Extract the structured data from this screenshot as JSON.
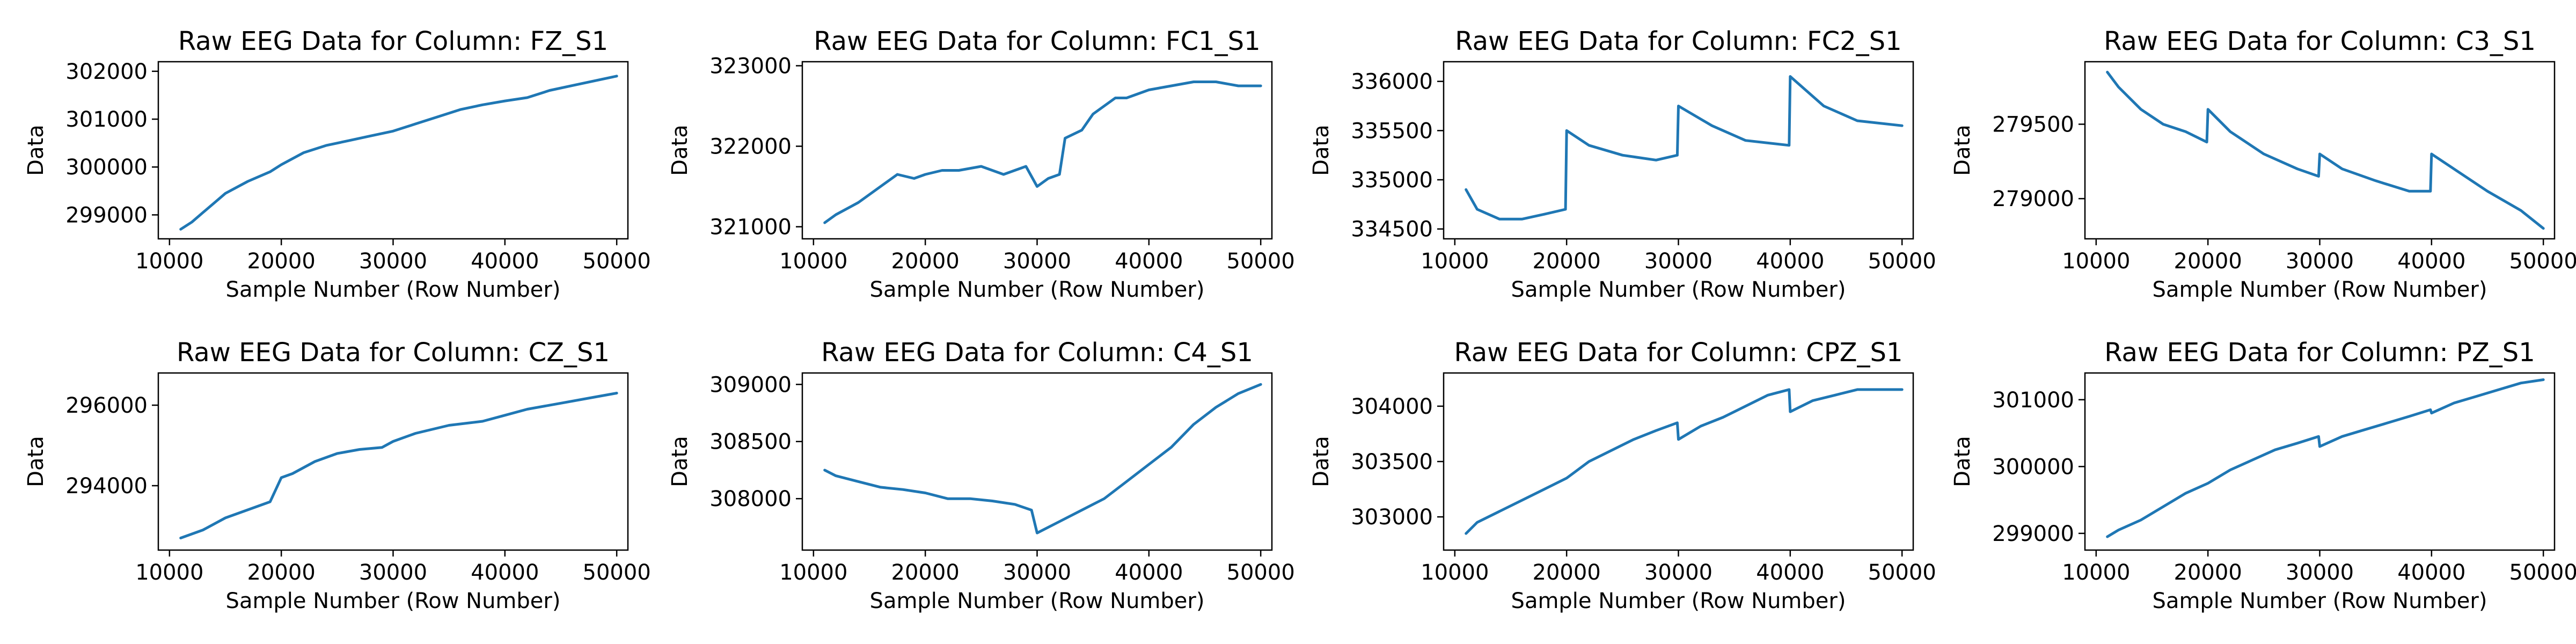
{
  "chart_data": [
    {
      "type": "line",
      "title": "Raw EEG Data for Column: FZ_S1",
      "xlabel": "Sample Number (Row Number)",
      "ylabel": "Data",
      "xlim": [
        9000,
        51000
      ],
      "ylim": [
        298500,
        302200
      ],
      "xticks": [
        10000,
        20000,
        30000,
        40000,
        50000
      ],
      "yticks": [
        299000,
        300000,
        301000,
        302000
      ],
      "series": [
        {
          "color": "#1f77b4",
          "x": [
            11000,
            12000,
            13000,
            14000,
            15000,
            17000,
            19000,
            20000,
            22000,
            24000,
            26000,
            28000,
            30000,
            32000,
            34000,
            36000,
            38000,
            40000,
            42000,
            44000,
            46000,
            48000,
            50000
          ],
          "y": [
            298700,
            298850,
            299050,
            299250,
            299450,
            299700,
            299900,
            300050,
            300300,
            300450,
            300550,
            300650,
            300750,
            300900,
            301050,
            301200,
            301300,
            301380,
            301450,
            301600,
            301700,
            301800,
            301900
          ]
        }
      ]
    },
    {
      "type": "line",
      "title": "Raw EEG Data for Column: FC1_S1",
      "xlabel": "Sample Number (Row Number)",
      "ylabel": "Data",
      "xlim": [
        9000,
        51000
      ],
      "ylim": [
        320850,
        323050
      ],
      "xticks": [
        10000,
        20000,
        30000,
        40000,
        50000
      ],
      "yticks": [
        321000,
        322000,
        323000
      ],
      "series": [
        {
          "color": "#1f77b4",
          "x": [
            11000,
            12000,
            14000,
            15000,
            16000,
            17500,
            19000,
            20000,
            21500,
            23000,
            25000,
            27000,
            28000,
            29000,
            30000,
            31000,
            32000,
            32500,
            34000,
            35000,
            36000,
            37000,
            38000,
            40000,
            42000,
            44000,
            46000,
            48000,
            50000
          ],
          "y": [
            321050,
            321150,
            321300,
            321400,
            321500,
            321650,
            321600,
            321650,
            321700,
            321700,
            321750,
            321650,
            321700,
            321750,
            321500,
            321600,
            321650,
            322100,
            322200,
            322400,
            322500,
            322600,
            322600,
            322700,
            322750,
            322800,
            322800,
            322750,
            322750
          ]
        }
      ]
    },
    {
      "type": "line",
      "title": "Raw EEG Data for Column: FC2_S1",
      "xlabel": "Sample Number (Row Number)",
      "ylabel": "Data",
      "xlim": [
        9000,
        51000
      ],
      "ylim": [
        334400,
        336200
      ],
      "xticks": [
        10000,
        20000,
        30000,
        40000,
        50000
      ],
      "yticks": [
        334500,
        335000,
        335500,
        336000
      ],
      "series": [
        {
          "color": "#1f77b4",
          "x": [
            11000,
            12000,
            14000,
            16000,
            18000,
            19900,
            20000,
            22000,
            25000,
            28000,
            29900,
            30000,
            33000,
            36000,
            39900,
            40000,
            43000,
            46000,
            50000
          ],
          "y": [
            334900,
            334700,
            334600,
            334600,
            334650,
            334700,
            335500,
            335350,
            335250,
            335200,
            335250,
            335750,
            335550,
            335400,
            335350,
            336050,
            335750,
            335600,
            335550
          ]
        }
      ]
    },
    {
      "type": "line",
      "title": "Raw EEG Data for Column: C3_S1",
      "xlabel": "Sample Number (Row Number)",
      "ylabel": "Data",
      "xlim": [
        9000,
        51000
      ],
      "ylim": [
        278730,
        279920
      ],
      "xticks": [
        10000,
        20000,
        30000,
        40000,
        50000
      ],
      "yticks": [
        279000,
        279500
      ],
      "series": [
        {
          "color": "#1f77b4",
          "x": [
            11000,
            12000,
            14000,
            16000,
            18000,
            19900,
            20000,
            22000,
            25000,
            28000,
            29900,
            30000,
            32000,
            35000,
            38000,
            39900,
            40000,
            42000,
            45000,
            48000,
            50000
          ],
          "y": [
            279850,
            279750,
            279600,
            279500,
            279450,
            279380,
            279600,
            279450,
            279300,
            279200,
            279150,
            279300,
            279200,
            279120,
            279050,
            279050,
            279300,
            279200,
            279050,
            278920,
            278800
          ]
        }
      ]
    },
    {
      "type": "line",
      "title": "Raw EEG Data for Column: CZ_S1",
      "xlabel": "Sample Number (Row Number)",
      "ylabel": "Data",
      "xlim": [
        9000,
        51000
      ],
      "ylim": [
        292400,
        296800
      ],
      "xticks": [
        10000,
        20000,
        30000,
        40000,
        50000
      ],
      "yticks": [
        294000,
        296000
      ],
      "series": [
        {
          "color": "#1f77b4",
          "x": [
            11000,
            13000,
            15000,
            17000,
            19000,
            20000,
            21000,
            23000,
            25000,
            27000,
            29000,
            30000,
            32000,
            35000,
            38000,
            40000,
            42000,
            45000,
            48000,
            50000
          ],
          "y": [
            292700,
            292900,
            293200,
            293400,
            293600,
            294200,
            294300,
            294600,
            294800,
            294900,
            294950,
            295100,
            295300,
            295500,
            295600,
            295750,
            295900,
            296050,
            296200,
            296300
          ]
        }
      ]
    },
    {
      "type": "line",
      "title": "Raw EEG Data for Column: C4_S1",
      "xlabel": "Sample Number (Row Number)",
      "ylabel": "Data",
      "xlim": [
        9000,
        51000
      ],
      "ylim": [
        307550,
        309100
      ],
      "xticks": [
        10000,
        20000,
        30000,
        40000,
        50000
      ],
      "yticks": [
        308000,
        308500,
        309000
      ],
      "series": [
        {
          "color": "#1f77b4",
          "x": [
            11000,
            12000,
            14000,
            16000,
            18000,
            20000,
            22000,
            24000,
            26000,
            28000,
            29500,
            30000,
            32000,
            34000,
            36000,
            38000,
            40000,
            42000,
            44000,
            46000,
            48000,
            50000
          ],
          "y": [
            308250,
            308200,
            308150,
            308100,
            308080,
            308050,
            308000,
            308000,
            307980,
            307950,
            307900,
            307700,
            307800,
            307900,
            308000,
            308150,
            308300,
            308450,
            308650,
            308800,
            308920,
            309000
          ]
        }
      ]
    },
    {
      "type": "line",
      "title": "Raw EEG Data for Column: CPZ_S1",
      "xlabel": "Sample Number (Row Number)",
      "ylabel": "Data",
      "xlim": [
        9000,
        51000
      ],
      "ylim": [
        302700,
        304300
      ],
      "xticks": [
        10000,
        20000,
        30000,
        40000,
        50000
      ],
      "yticks": [
        303000,
        303500,
        304000
      ],
      "series": [
        {
          "color": "#1f77b4",
          "x": [
            11000,
            12000,
            14000,
            16000,
            18000,
            20000,
            22000,
            24000,
            26000,
            28000,
            29900,
            30000,
            32000,
            34000,
            36000,
            38000,
            39900,
            40000,
            42000,
            44000,
            46000,
            48000,
            50000
          ],
          "y": [
            302850,
            302950,
            303050,
            303150,
            303250,
            303350,
            303500,
            303600,
            303700,
            303780,
            303850,
            303700,
            303820,
            303900,
            304000,
            304100,
            304150,
            303950,
            304050,
            304100,
            304150,
            304150,
            304150
          ]
        }
      ]
    },
    {
      "type": "line",
      "title": "Raw EEG Data for Column: PZ_S1",
      "xlabel": "Sample Number (Row Number)",
      "ylabel": "Data",
      "xlim": [
        9000,
        51000
      ],
      "ylim": [
        298750,
        301400
      ],
      "xticks": [
        10000,
        20000,
        30000,
        40000,
        50000
      ],
      "yticks": [
        299000,
        300000,
        301000
      ],
      "series": [
        {
          "color": "#1f77b4",
          "x": [
            11000,
            12000,
            14000,
            16000,
            18000,
            20000,
            22000,
            24000,
            26000,
            28000,
            29900,
            30000,
            32000,
            34000,
            36000,
            38000,
            39900,
            40000,
            42000,
            44000,
            46000,
            48000,
            50000
          ],
          "y": [
            298950,
            299050,
            299200,
            299400,
            299600,
            299750,
            299950,
            300100,
            300250,
            300350,
            300450,
            300300,
            300450,
            300550,
            300650,
            300750,
            300850,
            300800,
            300950,
            301050,
            301150,
            301250,
            301300
          ]
        }
      ]
    }
  ]
}
